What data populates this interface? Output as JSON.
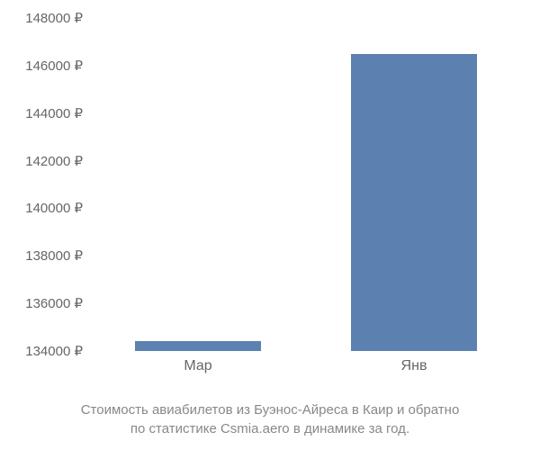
{
  "chart": {
    "type": "bar",
    "categories": [
      "Мар",
      "Янв"
    ],
    "values": [
      134400,
      146500
    ],
    "bar_color": "#5c80b0",
    "background_color": "#ffffff",
    "axis_text_color": "#666666",
    "caption_color": "#888888",
    "ylim": [
      134000,
      148000
    ],
    "ytick_step": 2000,
    "yticks": [
      {
        "value": 148000,
        "label": "148000 ₽"
      },
      {
        "value": 146000,
        "label": "146000 ₽"
      },
      {
        "value": 144000,
        "label": "144000 ₽"
      },
      {
        "value": 142000,
        "label": "142000 ₽"
      },
      {
        "value": 140000,
        "label": "140000 ₽"
      },
      {
        "value": 138000,
        "label": "138000 ₽"
      },
      {
        "value": 136000,
        "label": "136000 ₽"
      },
      {
        "value": 134000,
        "label": "134000 ₽"
      }
    ],
    "bar_width_ratio": 0.58,
    "label_fontsize": 15,
    "caption_fontsize": 15
  },
  "caption": {
    "line1": "Стоимость авиабилетов из Буэнос-Айреса в Каир и обратно",
    "line2": "по статистике Csmia.aero в динамике за год."
  }
}
